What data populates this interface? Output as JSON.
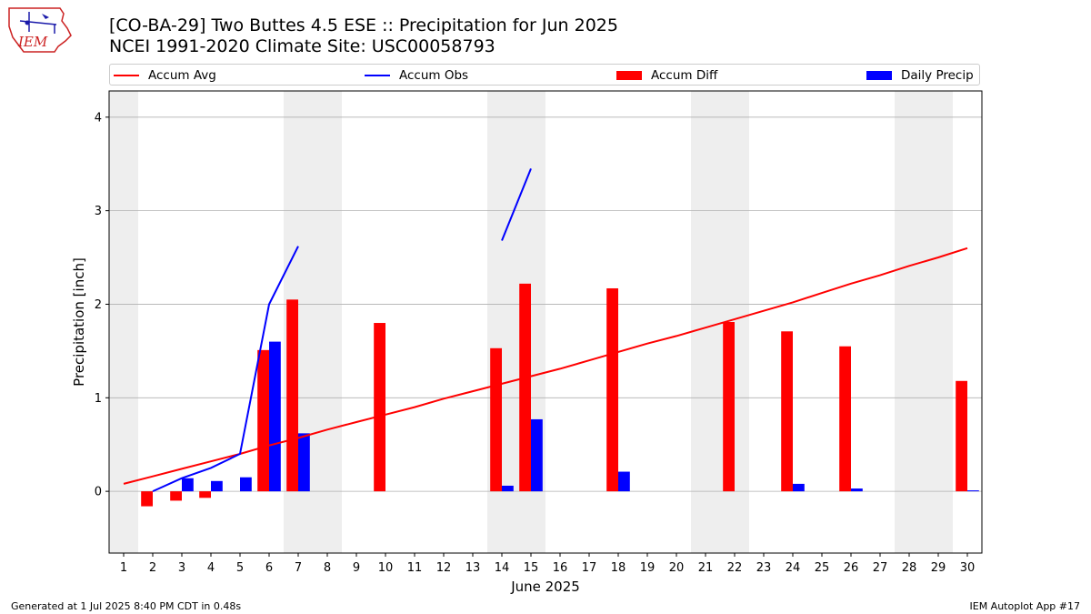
{
  "header": {
    "title_line1": "[CO-BA-29] Two Buttes 4.5 ESE :: Precipitation for Jun 2025",
    "title_line2": "NCEI 1991-2020 Climate Site: USC00058793",
    "logo_text": "IEM"
  },
  "footer": {
    "generated": "Generated at 1 Jul 2025 8:40 PM CDT in 0.48s",
    "app": "IEM Autoplot App #17"
  },
  "legend": [
    {
      "label": "Accum Avg",
      "kind": "line",
      "color": "#ff0000"
    },
    {
      "label": "Accum Obs",
      "kind": "line",
      "color": "#0000ff"
    },
    {
      "label": "Accum Diff",
      "kind": "bar",
      "color": "#ff0000"
    },
    {
      "label": "Daily Precip",
      "kind": "bar",
      "color": "#0000ff"
    }
  ],
  "chart_data": {
    "type": "bar",
    "title": "[CO-BA-29] Two Buttes 4.5 ESE :: Precipitation for Jun 2025",
    "xlabel": "June 2025",
    "ylabel": "Precipitation [inch]",
    "x": [
      1,
      2,
      3,
      4,
      5,
      6,
      7,
      8,
      9,
      10,
      11,
      12,
      13,
      14,
      15,
      16,
      17,
      18,
      19,
      20,
      21,
      22,
      23,
      24,
      25,
      26,
      27,
      28,
      29,
      30
    ],
    "xlim": [
      0.5,
      30.5
    ],
    "ylim": [
      -0.66,
      4.28
    ],
    "yticks": [
      0,
      1,
      2,
      3,
      4
    ],
    "grid": true,
    "legend_position": "top",
    "weekend_shading": [
      1,
      7,
      8,
      14,
      15,
      21,
      22,
      28,
      29
    ],
    "accum_avg": {
      "name": "Accum Avg",
      "color": "#ff0000",
      "x": [
        1,
        2,
        3,
        4,
        5,
        6,
        7,
        8,
        9,
        10,
        11,
        12,
        13,
        14,
        15,
        16,
        17,
        18,
        19,
        20,
        21,
        22,
        23,
        24,
        25,
        26,
        27,
        28,
        29,
        30
      ],
      "values": [
        0.08,
        0.16,
        0.24,
        0.32,
        0.4,
        0.49,
        0.57,
        0.66,
        0.74,
        0.82,
        0.9,
        0.99,
        1.07,
        1.15,
        1.23,
        1.31,
        1.4,
        1.49,
        1.58,
        1.66,
        1.75,
        1.84,
        1.93,
        2.02,
        2.12,
        2.22,
        2.31,
        2.41,
        2.5,
        2.6
      ]
    },
    "accum_obs": {
      "name": "Accum Obs",
      "color": "#0000ff",
      "segments": [
        {
          "x": [
            2,
            3,
            4,
            5,
            6,
            7
          ],
          "values": [
            0.0,
            0.14,
            0.25,
            0.4,
            2.0,
            2.62
          ]
        },
        {
          "x": [
            14,
            15
          ],
          "values": [
            2.68,
            3.45
          ]
        }
      ]
    },
    "accum_diff": {
      "name": "Accum Diff",
      "color": "#ff0000",
      "x": [
        2,
        3,
        4,
        6,
        7,
        10,
        14,
        15,
        18,
        22,
        24,
        26,
        30
      ],
      "values": [
        -0.16,
        -0.1,
        -0.07,
        1.51,
        2.05,
        1.8,
        1.53,
        2.22,
        2.17,
        1.81,
        1.71,
        1.55,
        1.18
      ]
    },
    "daily_precip": {
      "name": "Daily Precip",
      "color": "#0000ff",
      "x": [
        3,
        4,
        5,
        6,
        7,
        14,
        15,
        18,
        24,
        26,
        30
      ],
      "values": [
        0.14,
        0.11,
        0.15,
        1.6,
        0.62,
        0.06,
        0.77,
        0.21,
        0.08,
        0.03,
        0.01
      ]
    }
  }
}
